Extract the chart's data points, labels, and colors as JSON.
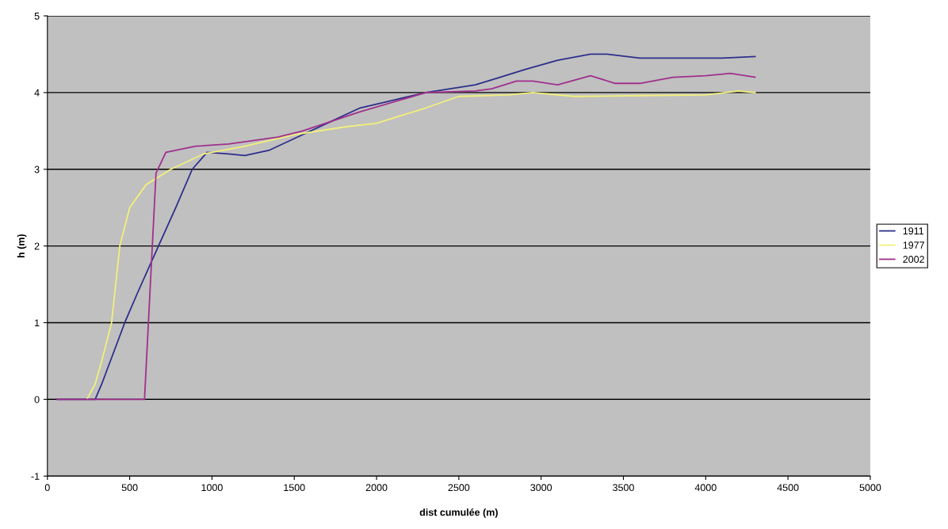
{
  "chart_data": {
    "type": "line",
    "xlabel": "dist cumulée (m)",
    "ylabel": "h (m)",
    "xlim": [
      0,
      5000
    ],
    "xticks": [
      0,
      500,
      1000,
      1500,
      2000,
      2500,
      3000,
      3500,
      4000,
      4500,
      5000
    ],
    "ylim": [
      -1,
      5
    ],
    "yticks": [
      -1,
      0,
      1,
      2,
      3,
      4,
      5
    ],
    "grid": "y",
    "legend": "right",
    "marker": "none",
    "line_style": "solid",
    "series": [
      {
        "name": "1911",
        "color": "#2e2e8c",
        "x": [
          60,
          150,
          290,
          330,
          400,
          470,
          550,
          675,
          780,
          880,
          970,
          1100,
          1200,
          1350,
          1500,
          1700,
          1900,
          2100,
          2300,
          2600,
          2750,
          2900,
          3100,
          3300,
          3400,
          3600,
          3800,
          4100,
          4300
        ],
        "values": [
          0,
          0,
          0,
          0.2,
          0.6,
          1,
          1.4,
          2,
          2.5,
          3,
          3.22,
          3.2,
          3.18,
          3.25,
          3.4,
          3.6,
          3.8,
          3.9,
          4.0,
          4.1,
          4.2,
          4.3,
          4.42,
          4.5,
          4.5,
          4.45,
          4.45,
          4.45,
          4.47
        ]
      },
      {
        "name": "1977",
        "color": "#f2f07a",
        "x": [
          240,
          290,
          330,
          390,
          440,
          500,
          600,
          750,
          950,
          1200,
          1500,
          1800,
          2000,
          2300,
          2500,
          2800,
          2950,
          3200,
          3600,
          4000,
          4200,
          4300
        ],
        "values": [
          0,
          0.2,
          0.5,
          1,
          2,
          2.5,
          2.8,
          3.0,
          3.2,
          3.3,
          3.45,
          3.55,
          3.6,
          3.8,
          3.95,
          3.97,
          4.0,
          3.95,
          3.96,
          3.97,
          4.02,
          4.0
        ]
      },
      {
        "name": "2002",
        "color": "#a0308c",
        "x": [
          60,
          300,
          590,
          660,
          720,
          900,
          1100,
          1400,
          1550,
          1900,
          2300,
          2600,
          2700,
          2850,
          2950,
          3100,
          3300,
          3450,
          3600,
          3800,
          4000,
          4150,
          4300
        ],
        "values": [
          0,
          0,
          0,
          2.95,
          3.22,
          3.3,
          3.33,
          3.42,
          3.5,
          3.75,
          4.0,
          4.02,
          4.05,
          4.15,
          4.15,
          4.1,
          4.22,
          4.12,
          4.12,
          4.2,
          4.22,
          4.25,
          4.2
        ]
      }
    ]
  }
}
